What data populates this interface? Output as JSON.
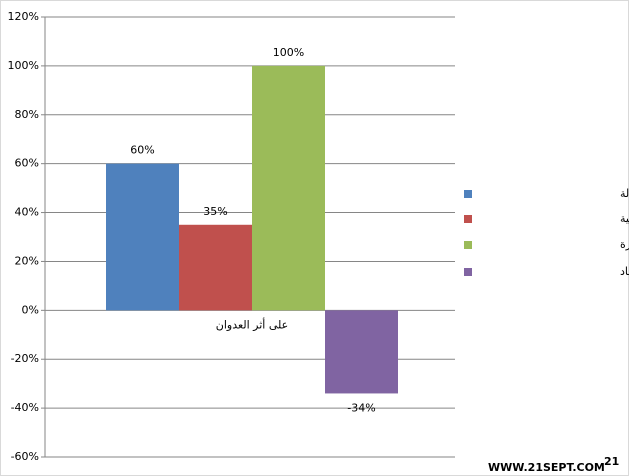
{
  "chart_data": {
    "type": "bar",
    "categories": [
      "على أثر العدوان"
    ],
    "series": [
      {
        "name": "معدل البطالة",
        "color": "#4f81bd",
        "values": [
          60
        ],
        "value_labels": [
          "60%"
        ]
      },
      {
        "name": "ارتفاع اسعار المواد الغذائية",
        "color": "#c0504d",
        "values": [
          35
        ],
        "value_labels": [
          "35%"
        ]
      },
      {
        "name": "نسبة وسائل الإعلام المتضررة",
        "color": "#9bbb59",
        "values": [
          100
        ],
        "value_labels": [
          "100%"
        ]
      },
      {
        "name": "نمو الإقتصاد",
        "color": "#8064a2",
        "values": [
          -34
        ],
        "value_labels": [
          "-34%"
        ]
      }
    ],
    "ylim": [
      -60,
      120
    ],
    "yticks": [
      {
        "value": -60,
        "label": "-60%"
      },
      {
        "value": -40,
        "label": "-40%"
      },
      {
        "value": -20,
        "label": "-20%"
      },
      {
        "value": 0,
        "label": "0%"
      },
      {
        "value": 20,
        "label": "20%"
      },
      {
        "value": 40,
        "label": "40%"
      },
      {
        "value": 60,
        "label": "60%"
      },
      {
        "value": 80,
        "label": "80%"
      },
      {
        "value": 100,
        "label": "100%"
      },
      {
        "value": 120,
        "label": "120%"
      }
    ],
    "grid": true,
    "legend": "right",
    "watermark": "WWW.21SEPT.COM",
    "logo": "21"
  }
}
